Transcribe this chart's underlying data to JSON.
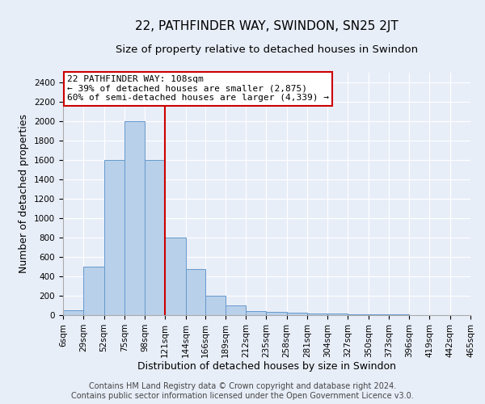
{
  "title": "22, PATHFINDER WAY, SWINDON, SN25 2JT",
  "subtitle": "Size of property relative to detached houses in Swindon",
  "xlabel": "Distribution of detached houses by size in Swindon",
  "ylabel": "Number of detached properties",
  "footer_line1": "Contains HM Land Registry data © Crown copyright and database right 2024.",
  "footer_line2": "Contains public sector information licensed under the Open Government Licence v3.0.",
  "annotation_line1": "22 PATHFINDER WAY: 108sqm",
  "annotation_line2": "← 39% of detached houses are smaller (2,875)",
  "annotation_line3": "60% of semi-detached houses are larger (4,339) →",
  "bar_edges": [
    6,
    29,
    52,
    75,
    98,
    121,
    144,
    166,
    189,
    212,
    235,
    258,
    281,
    304,
    327,
    350,
    373,
    396,
    419,
    442,
    465
  ],
  "bar_heights": [
    50,
    500,
    1600,
    2000,
    1600,
    800,
    475,
    200,
    100,
    40,
    35,
    25,
    20,
    15,
    10,
    8,
    5,
    3,
    2,
    1
  ],
  "bar_color": "#b8d0ea",
  "bar_edge_color": "#6699cc",
  "red_line_x": 121,
  "ylim": [
    0,
    2500
  ],
  "yticks": [
    0,
    200,
    400,
    600,
    800,
    1000,
    1200,
    1400,
    1600,
    1800,
    2000,
    2200,
    2400
  ],
  "bg_color": "#e8eef8",
  "plot_bg_color": "#e8eef8",
  "grid_color": "#ffffff",
  "annotation_box_color": "#ffffff",
  "annotation_box_edge": "#cc0000",
  "title_fontsize": 11,
  "subtitle_fontsize": 9.5,
  "xlabel_fontsize": 9,
  "ylabel_fontsize": 9,
  "tick_fontsize": 7.5,
  "annotation_fontsize": 8,
  "footer_fontsize": 7
}
